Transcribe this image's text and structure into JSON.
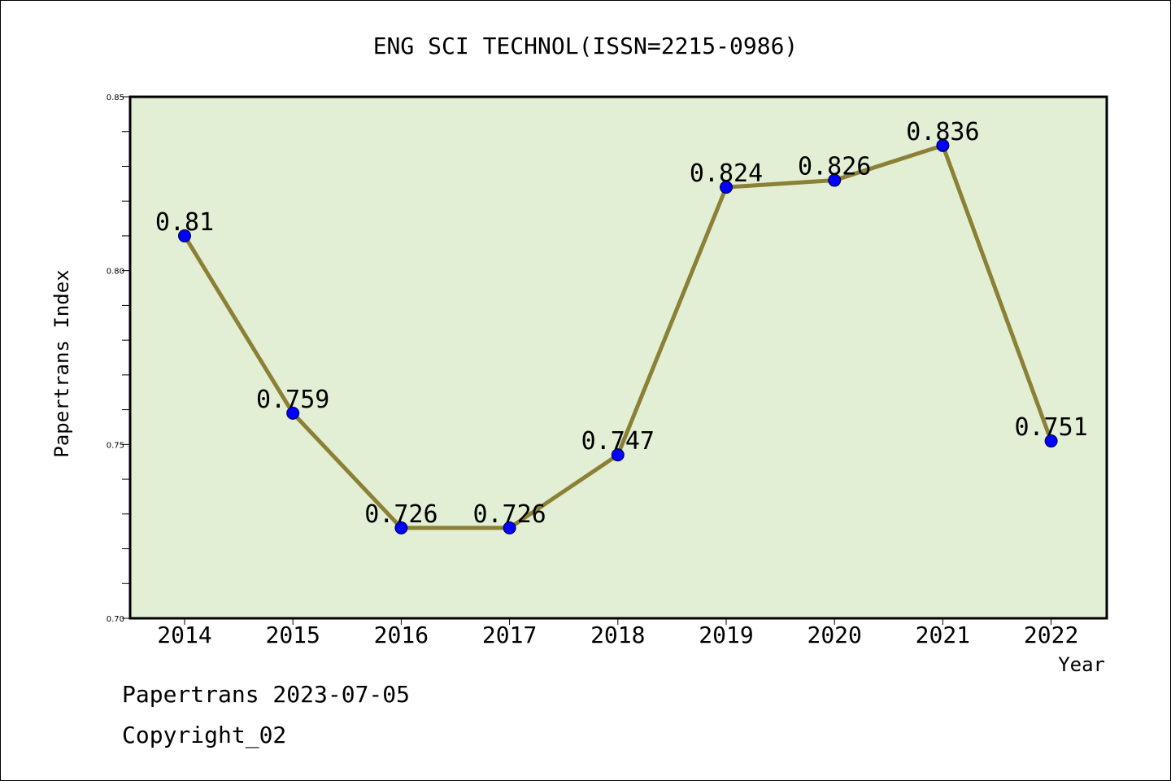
{
  "footer": {
    "line1": "Papertrans 2023-07-05",
    "line2": "Copyright_02"
  },
  "chart_data": {
    "type": "line",
    "title": "ENG SCI TECHNOL(ISSN=2215-0986)",
    "xlabel": "Year",
    "ylabel": "Papertrans Index",
    "categories": [
      "2014",
      "2015",
      "2016",
      "2017",
      "2018",
      "2019",
      "2020",
      "2021",
      "2022"
    ],
    "values": [
      0.81,
      0.759,
      0.726,
      0.726,
      0.747,
      0.824,
      0.826,
      0.836,
      0.751
    ],
    "value_labels": [
      "0.81",
      "0.759",
      "0.726",
      "0.726",
      "0.747",
      "0.824",
      "0.826",
      "0.836",
      "0.751"
    ],
    "ylim": [
      0.7,
      0.85
    ],
    "yticks": [
      "0.70",
      "0.75",
      "0.80",
      "0.85"
    ],
    "grid": false,
    "colors": {
      "plot_background": "#e2efd5",
      "line": "#8b8035",
      "marker": "#0000ff"
    }
  }
}
